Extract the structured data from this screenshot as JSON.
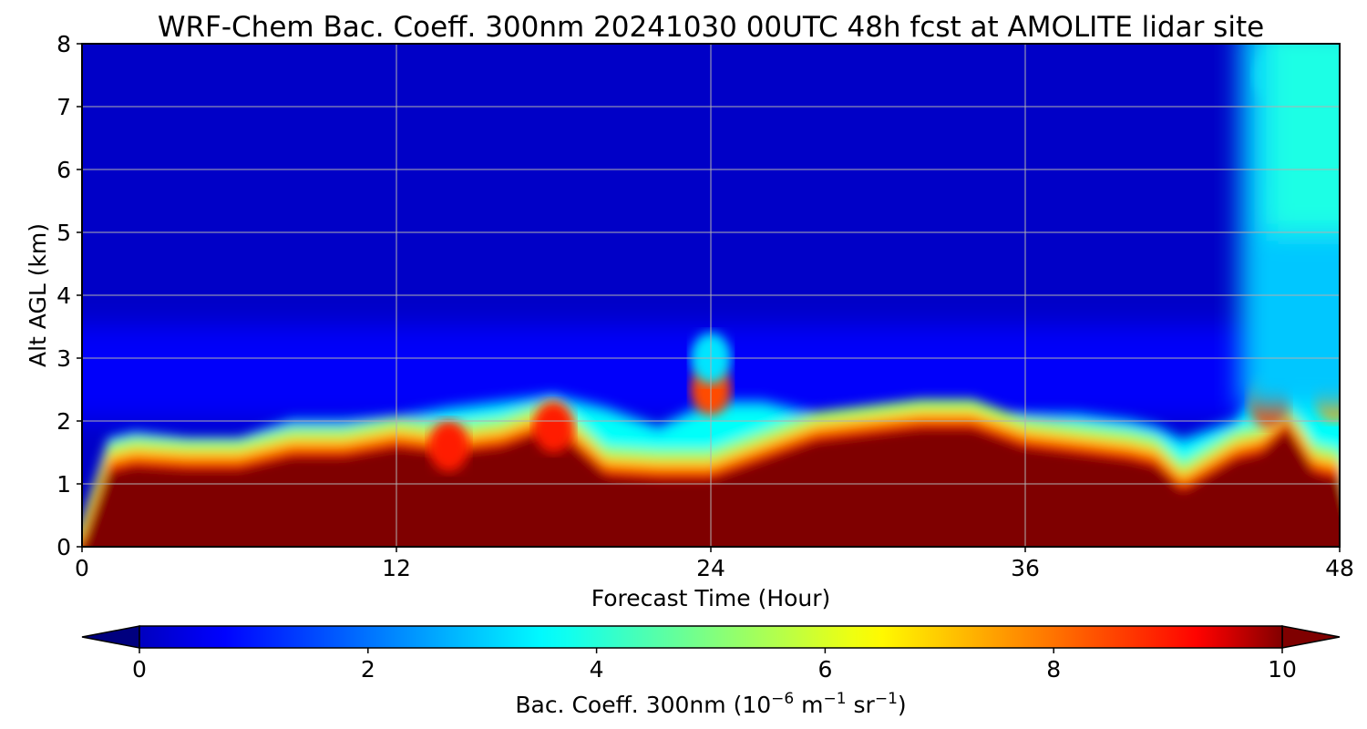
{
  "chart_data": {
    "type": "heatmap",
    "title": "WRF-Chem Bac. Coeff. 300nm  20241030 00UTC 48h fcst at AMOLITE lidar site",
    "xlabel": "Forecast Time (Hour)",
    "ylabel": "Alt AGL (km)",
    "x_ticks": [
      "0",
      "12",
      "24",
      "36",
      "48"
    ],
    "y_ticks": [
      "0",
      "1",
      "2",
      "3",
      "4",
      "5",
      "6",
      "7",
      "8"
    ],
    "xlim": [
      0,
      48
    ],
    "ylim": [
      0,
      8
    ],
    "grid": true,
    "colormap": "jet",
    "colorbar": {
      "label_main": "Bac. Coeff. 300nm  (10",
      "label_exp1": "−6",
      "label_mid": " m",
      "label_exp2": "−1",
      "label_mid2": " sr",
      "label_exp3": "−1",
      "label_end": ")",
      "ticks": [
        "0",
        "2",
        "4",
        "6",
        "8",
        "10"
      ],
      "range": [
        0,
        10
      ],
      "extend": "both",
      "placement": "bottom",
      "under_color": "#00007f",
      "over_color": "#7f0000"
    },
    "times": [
      0,
      1,
      2,
      4,
      6,
      8,
      10,
      12,
      14,
      16,
      18,
      20,
      22,
      24,
      26,
      28,
      30,
      32,
      34,
      36,
      38,
      40,
      41,
      42,
      44,
      45,
      46,
      47,
      48
    ],
    "aerosol_top_km": [
      0.0,
      1.2,
      1.3,
      1.25,
      1.25,
      1.45,
      1.45,
      1.6,
      1.5,
      1.6,
      1.9,
      1.15,
      1.1,
      1.1,
      1.4,
      1.7,
      1.8,
      1.9,
      1.9,
      1.6,
      1.5,
      1.4,
      1.3,
      0.9,
      1.4,
      1.5,
      1.9,
      1.2,
      1.1
    ],
    "transition_top_km": [
      0.2,
      1.6,
      1.7,
      1.6,
      1.6,
      1.9,
      1.9,
      1.95,
      2.1,
      2.2,
      2.3,
      2.1,
      1.8,
      2.2,
      2.2,
      2.0,
      2.0,
      2.1,
      2.0,
      2.0,
      2.0,
      1.9,
      1.8,
      1.6,
      1.9,
      2.4,
      2.5,
      3.0,
      3.5
    ],
    "features": [
      {
        "t": 18,
        "z": 1.9,
        "value": 8.5
      },
      {
        "t": 14,
        "z": 1.6,
        "value": 8.5
      },
      {
        "t": 24,
        "z": 2.5,
        "value": 8.0
      },
      {
        "t": 24,
        "z": 3.0,
        "value": 3.5
      },
      {
        "t": 46,
        "z": 5.5,
        "value": 4.0
      },
      {
        "t": 47,
        "z": 7.4,
        "value": 5.0
      },
      {
        "t": 45.5,
        "z": 7.5,
        "value": 4.0
      },
      {
        "t": 47.8,
        "z": 2.4,
        "value": 7.0
      },
      {
        "t": 45.3,
        "z": 2.3,
        "value": 8.0
      }
    ]
  }
}
